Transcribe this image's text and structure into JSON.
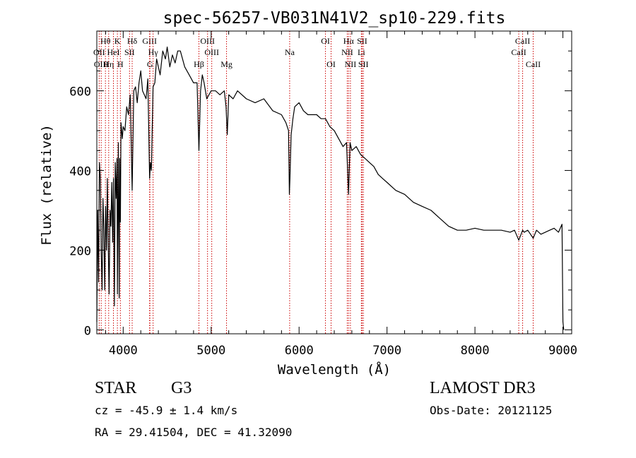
{
  "chart_data": {
    "type": "line",
    "title": "spec-56257-VB031N41V2_sp10-229.fits",
    "xlabel": "Wavelength (Å)",
    "ylabel": "Flux (relative)",
    "xlim": [
      3700,
      9100
    ],
    "ylim": [
      -10,
      750
    ],
    "x_ticks": [
      4000,
      5000,
      6000,
      7000,
      8000,
      9000
    ],
    "x_tick_labels": [
      "4000",
      "5000",
      "6000",
      "7000",
      "8000",
      "9000"
    ],
    "y_ticks": [
      0,
      200,
      400,
      600
    ],
    "y_tick_labels": [
      "0",
      "200",
      "400",
      "600"
    ],
    "line_color": "#000000",
    "marker_color": "#cc0000",
    "series": [
      {
        "name": "spectrum",
        "x": [
          3700,
          3710,
          3720,
          3730,
          3740,
          3750,
          3760,
          3770,
          3780,
          3790,
          3800,
          3810,
          3820,
          3830,
          3840,
          3850,
          3860,
          3870,
          3880,
          3890,
          3900,
          3910,
          3920,
          3930,
          3935,
          3945,
          3955,
          3960,
          3968,
          3975,
          3990,
          4000,
          4020,
          4040,
          4060,
          4080,
          4102,
          4120,
          4140,
          4160,
          4180,
          4200,
          4220,
          4240,
          4260,
          4280,
          4300,
          4310,
          4320,
          4340,
          4360,
          4380,
          4400,
          4420,
          4450,
          4480,
          4500,
          4530,
          4560,
          4590,
          4620,
          4650,
          4700,
          4750,
          4800,
          4840,
          4861,
          4880,
          4900,
          4920,
          4950,
          5000,
          5050,
          5100,
          5150,
          5170,
          5183,
          5200,
          5250,
          5300,
          5400,
          5500,
          5600,
          5700,
          5800,
          5850,
          5880,
          5890,
          5896,
          5910,
          5930,
          5950,
          6000,
          6050,
          6100,
          6150,
          6200,
          6250,
          6300,
          6350,
          6400,
          6450,
          6500,
          6540,
          6562,
          6580,
          6600,
          6650,
          6700,
          6750,
          6800,
          6850,
          6900,
          6950,
          7000,
          7100,
          7200,
          7300,
          7400,
          7500,
          7600,
          7650,
          7700,
          7800,
          7900,
          8000,
          8100,
          8200,
          8300,
          8400,
          8450,
          8498,
          8542,
          8560,
          8600,
          8662,
          8700,
          8750,
          8800,
          8850,
          8900,
          8950,
          8990,
          9000,
          9010
        ],
        "y": [
          20,
          300,
          120,
          420,
          380,
          200,
          100,
          330,
          250,
          100,
          310,
          200,
          380,
          210,
          90,
          300,
          260,
          370,
          220,
          380,
          60,
          420,
          330,
          430,
          90,
          470,
          80,
          430,
          270,
          520,
          480,
          510,
          500,
          560,
          540,
          590,
          350,
          600,
          610,
          570,
          620,
          650,
          600,
          590,
          580,
          630,
          380,
          420,
          400,
          610,
          620,
          680,
          660,
          640,
          700,
          680,
          710,
          660,
          690,
          670,
          700,
          700,
          660,
          640,
          620,
          620,
          450,
          600,
          640,
          620,
          580,
          600,
          600,
          590,
          600,
          560,
          490,
          590,
          580,
          600,
          580,
          570,
          580,
          550,
          540,
          520,
          500,
          340,
          380,
          490,
          530,
          560,
          570,
          550,
          540,
          540,
          540,
          530,
          530,
          510,
          500,
          480,
          460,
          470,
          340,
          470,
          450,
          460,
          440,
          430,
          420,
          410,
          390,
          380,
          370,
          350,
          340,
          320,
          310,
          300,
          280,
          270,
          260,
          250,
          250,
          255,
          250,
          250,
          250,
          245,
          250,
          225,
          250,
          245,
          250,
          230,
          250,
          240,
          245,
          250,
          255,
          245,
          265,
          20,
          0
        ]
      }
    ],
    "line_markers": [
      {
        "label": "Hθ",
        "x": 3798,
        "row": 1
      },
      {
        "label": "OII",
        "x": 3727,
        "row": 2
      },
      {
        "label": "OIII",
        "x": 3750,
        "row": 3
      },
      {
        "label": "Hη",
        "x": 3835,
        "row": 3
      },
      {
        "label": "HeI",
        "x": 3889,
        "row": 2
      },
      {
        "label": "K",
        "x": 3934,
        "row": 1
      },
      {
        "label": "H",
        "x": 3968,
        "row": 3
      },
      {
        "label": "Hδ",
        "x": 4102,
        "row": 1
      },
      {
        "label": "SII",
        "x": 4072,
        "row": 2
      },
      {
        "label": "GIII",
        "x": 4300,
        "row": 1
      },
      {
        "label": "Hγ",
        "x": 4340,
        "row": 2
      },
      {
        "label": "G",
        "x": 4304,
        "row": 3
      },
      {
        "label": "Hβ",
        "x": 4861,
        "row": 3
      },
      {
        "label": "OIII",
        "x": 4959,
        "row": 1
      },
      {
        "label": "OIII",
        "x": 5007,
        "row": 2
      },
      {
        "label": "Mg",
        "x": 5175,
        "row": 3
      },
      {
        "label": "Na",
        "x": 5893,
        "row": 2
      },
      {
        "label": "OI",
        "x": 6300,
        "row": 1
      },
      {
        "label": "OI",
        "x": 6364,
        "row": 3
      },
      {
        "label": "Hα",
        "x": 6563,
        "row": 1
      },
      {
        "label": "NII",
        "x": 6548,
        "row": 2
      },
      {
        "label": "NII",
        "x": 6584,
        "row": 3
      },
      {
        "label": "SII",
        "x": 6717,
        "row": 1
      },
      {
        "label": "Li",
        "x": 6708,
        "row": 2
      },
      {
        "label": "SII",
        "x": 6731,
        "row": 3
      },
      {
        "label": "CaII",
        "x": 8542,
        "row": 1
      },
      {
        "label": "CaII",
        "x": 8498,
        "row": 2
      },
      {
        "label": "CaII",
        "x": 8662,
        "row": 3
      }
    ]
  },
  "info": {
    "object_class": "STAR",
    "subclass": "G3",
    "survey": "LAMOST DR3",
    "cz": "cz = -45.9 ± 1.4 km/s",
    "obs_date": "Obs-Date: 20121125",
    "coords": "RA =  29.41504, DEC =  41.32090"
  }
}
